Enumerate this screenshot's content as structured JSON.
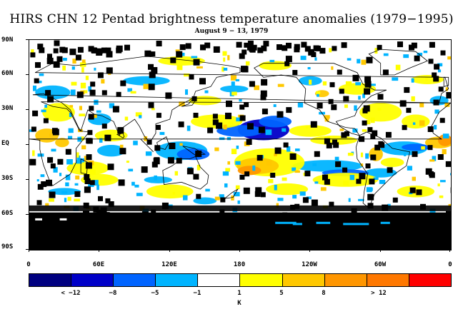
{
  "title": "HIRS CHN 12 Pentad brightness temperature anomalies (1979−1995)",
  "subtitle": "August 9 − 13, 1979",
  "lat_labels": [
    "90N",
    "60N",
    "30N",
    "EQ",
    "30S",
    "60S",
    "90S"
  ],
  "lon_labels": [
    "0",
    "60E",
    "120E",
    "180",
    "120W",
    "60W",
    "0"
  ],
  "legend": {
    "colors": [
      "#000080",
      "#0000c8",
      "#0064ff",
      "#00b4ff",
      "#ffffff",
      "#ffff00",
      "#ffc800",
      "#ff9600",
      "#ff7800",
      "#ff0000"
    ],
    "labels": [
      "< −12",
      "−8",
      "−5",
      "−1",
      "1",
      "5",
      "8",
      "> 12"
    ],
    "units": "K"
  },
  "colors": {
    "missing": "#000000",
    "coast": "#000000"
  }
}
